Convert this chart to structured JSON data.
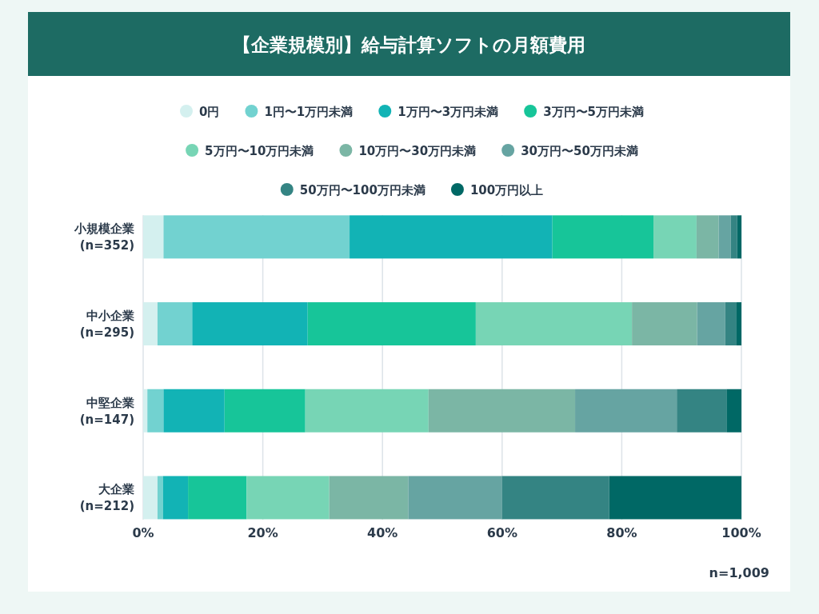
{
  "chart_data": {
    "type": "bar",
    "orientation": "horizontal",
    "stacked": true,
    "title": "【企業規模別】給与計算ソフトの月額費用",
    "categories": [
      "小規模企業 (n=352)",
      "中小企業 (n=295)",
      "中堅企業 (n=147)",
      "大企業 (n=212)"
    ],
    "series": [
      {
        "name": "0円",
        "color": "#d4f0ef",
        "values": [
          3.4,
          2.4,
          0.7,
          2.4
        ]
      },
      {
        "name": "1円〜1万円未満",
        "color": "#72d2d0",
        "values": [
          31.1,
          5.8,
          2.7,
          0.9
        ]
      },
      {
        "name": "1万円〜3万円未満",
        "color": "#12b3b5",
        "values": [
          33.9,
          19.3,
          10.2,
          4.2
        ]
      },
      {
        "name": "3万円〜5万円未満",
        "color": "#17c599",
        "values": [
          16.9,
          28.1,
          13.5,
          9.8
        ]
      },
      {
        "name": "5万円〜10万円未満",
        "color": "#77d5b5",
        "values": [
          7.2,
          26.1,
          20.6,
          13.8
        ]
      },
      {
        "name": "10万円〜30万円未満",
        "color": "#7bb6a5",
        "values": [
          3.7,
          10.9,
          24.5,
          13.2
        ]
      },
      {
        "name": "30万円〜50万円未満",
        "color": "#66a4a2",
        "values": [
          2.0,
          4.7,
          17.0,
          15.7
        ]
      },
      {
        "name": "50万円〜100万円未満",
        "color": "#348483",
        "values": [
          1.1,
          1.8,
          8.3,
          17.9
        ]
      },
      {
        "name": "100万円以上",
        "color": "#006865",
        "values": [
          0.7,
          0.9,
          2.5,
          22.1
        ]
      }
    ],
    "xlim": [
      0,
      100
    ],
    "xticks": [
      {
        "value": 0,
        "label": "0%"
      },
      {
        "value": 20,
        "label": "20%"
      },
      {
        "value": 40,
        "label": "40%"
      },
      {
        "value": 60,
        "label": "60%"
      },
      {
        "value": 80,
        "label": "80%"
      },
      {
        "value": 100,
        "label": "100%"
      }
    ],
    "grid": "x",
    "legend": "top",
    "annotations": [
      "n=1,009"
    ]
  }
}
